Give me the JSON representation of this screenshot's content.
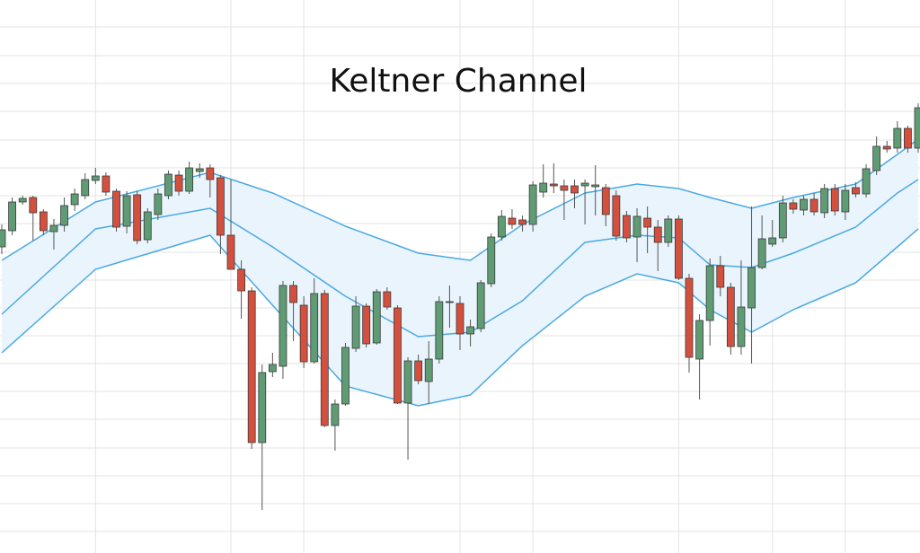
{
  "chart_data": {
    "type": "candlestick",
    "title": "Keltner Channel",
    "open": [
      341,
      359,
      391,
      396,
      380,
      358,
      365,
      388,
      398,
      415,
      420,
      403,
      364,
      399,
      349,
      377,
      398,
      421,
      403,
      425,
      429,
      418,
      354,
      316,
      292,
      123,
      202,
      208,
      298,
      276,
      213,
      289,
      142,
      166,
      228,
      275,
      234,
      291,
      273,
      167,
      214,
      191,
      216,
      279,
      278,
      244,
      250,
      300,
      352,
      373,
      371,
      366,
      402,
      411,
      409,
      409,
      409,
      408,
      407,
      398,
      376,
      352,
      373,
      363,
      346,
      372,
      306,
      216,
      259,
      320,
      296,
      230,
      273,
      318,
      344,
      351,
      390,
      382,
      394,
      379,
      406,
      380,
      407,
      400,
      426,
      453,
      451,
      473,
      451
    ],
    "high": [
      366,
      396,
      398,
      398,
      383,
      372,
      396,
      406,
      423,
      429,
      424,
      406,
      403,
      403,
      384,
      406,
      426,
      426,
      436,
      434,
      433,
      421,
      416,
      326,
      296,
      210,
      223,
      303,
      303,
      286,
      306,
      293,
      171,
      234,
      286,
      278,
      294,
      296,
      276,
      218,
      221,
      236,
      286,
      298,
      286,
      260,
      304,
      356,
      382,
      383,
      376,
      414,
      433,
      434,
      416,
      416,
      416,
      432,
      411,
      404,
      381,
      384,
      386,
      371,
      376,
      376,
      311,
      266,
      328,
      331,
      301,
      326,
      386,
      376,
      371,
      398,
      394,
      398,
      401,
      411,
      411,
      411,
      413,
      433,
      464,
      459,
      481,
      476,
      501
    ],
    "low": [
      333,
      354,
      388,
      348,
      354,
      338,
      358,
      381,
      394,
      411,
      398,
      358,
      356,
      344,
      345,
      371,
      394,
      398,
      400,
      418,
      396,
      333,
      316,
      261,
      116,
      48,
      196,
      194,
      236,
      206,
      211,
      140,
      114,
      164,
      224,
      229,
      232,
      271,
      166,
      104,
      188,
      166,
      211,
      251,
      226,
      230,
      246,
      296,
      348,
      361,
      358,
      358,
      396,
      401,
      371,
      384,
      366,
      376,
      364,
      348,
      346,
      324,
      334,
      314,
      341,
      304,
      201,
      171,
      231,
      286,
      221,
      221,
      211,
      316,
      341,
      346,
      378,
      376,
      376,
      373,
      376,
      371,
      396,
      396,
      421,
      446,
      446,
      446,
      446
    ],
    "close": [
      360,
      391,
      395,
      379,
      359,
      365,
      387,
      400,
      416,
      420,
      402,
      363,
      398,
      348,
      380,
      400,
      422,
      403,
      429,
      428,
      416,
      354,
      316,
      292,
      123,
      201,
      210,
      298,
      279,
      213,
      289,
      142,
      166,
      229,
      275,
      233,
      291,
      274,
      167,
      214,
      192,
      216,
      280,
      280,
      244,
      252,
      301,
      352,
      375,
      366,
      366,
      410,
      412,
      409,
      404,
      401,
      412,
      410,
      377,
      353,
      351,
      375,
      363,
      346,
      372,
      306,
      218,
      259,
      320,
      296,
      230,
      274,
      318,
      350,
      351,
      390,
      383,
      394,
      380,
      406,
      381,
      404,
      400,
      428,
      453,
      450,
      473,
      451,
      496
    ],
    "up_color": "#5f9c74",
    "down_color": "#d4503e",
    "channel": [
      {
        "color": "#4aa9e2",
        "x": [
          0,
          9,
          20,
          26,
          33,
          40,
          45,
          50,
          56,
          61,
          65,
          68,
          72,
          76,
          82,
          86,
          88
        ],
        "values": [
          326,
          391,
          424,
          401,
          364,
          334,
          326,
          366,
          401,
          411,
          406,
          396,
          384,
          396,
          411,
          444,
          461
        ]
      },
      {
        "color": "#4aa9e2",
        "x": [
          0,
          9,
          20,
          26,
          33,
          40,
          45,
          50,
          56,
          61,
          65,
          68,
          72,
          76,
          82,
          86,
          88
        ],
        "values": [
          266,
          361,
          384,
          341,
          286,
          241,
          246,
          281,
          346,
          354,
          351,
          321,
          318,
          334,
          363,
          401,
          416
        ]
      },
      {
        "color": "#4aa9e2",
        "x": [
          0,
          9,
          20,
          26,
          33,
          40,
          45,
          50,
          56,
          61,
          65,
          68,
          72,
          76,
          82,
          86,
          88
        ],
        "values": [
          223,
          316,
          354,
          276,
          186,
          164,
          176,
          231,
          286,
          311,
          301,
          271,
          246,
          271,
          301,
          341,
          361
        ]
      }
    ],
    "channel_fill": "#e9f4fc",
    "ylim": [
      0,
      616
    ],
    "yticks": [
      24,
      55,
      86,
      117,
      149,
      180,
      211,
      242,
      273,
      304,
      335,
      367,
      398,
      429,
      460,
      492,
      523,
      554,
      586
    ],
    "xgrid": [
      9,
      22,
      29,
      44,
      51,
      65,
      74,
      81
    ],
    "grid": true
  }
}
